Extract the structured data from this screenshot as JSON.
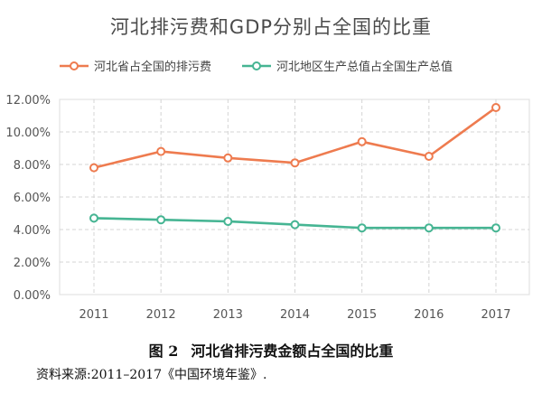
{
  "chart_data": {
    "type": "line",
    "title": "河北排污费和GDP分别占全国的比重",
    "categories": [
      "2011",
      "2012",
      "2013",
      "2014",
      "2015",
      "2016",
      "2017"
    ],
    "series": [
      {
        "name": "河北省占全国的排污费",
        "color": "#ee7b4f",
        "values": [
          7.8,
          8.8,
          8.4,
          8.1,
          9.4,
          8.5,
          11.5
        ]
      },
      {
        "name": "河北地区生产总值占全国生产总值",
        "color": "#46b593",
        "values": [
          4.7,
          4.6,
          4.5,
          4.3,
          4.1,
          4.1,
          4.1
        ]
      }
    ],
    "ylim": [
      0,
      12
    ],
    "yticks": [
      "0.00%",
      "2.00%",
      "4.00%",
      "6.00%",
      "8.00%",
      "10.00%",
      "12.00%"
    ],
    "grid": true,
    "legend_position": "top-left"
  },
  "caption": {
    "figure_number": "图 2",
    "text": "河北省排污费金额占全国的比重"
  },
  "source_note": "资料来源:2011–2017《中国环境年鉴》."
}
